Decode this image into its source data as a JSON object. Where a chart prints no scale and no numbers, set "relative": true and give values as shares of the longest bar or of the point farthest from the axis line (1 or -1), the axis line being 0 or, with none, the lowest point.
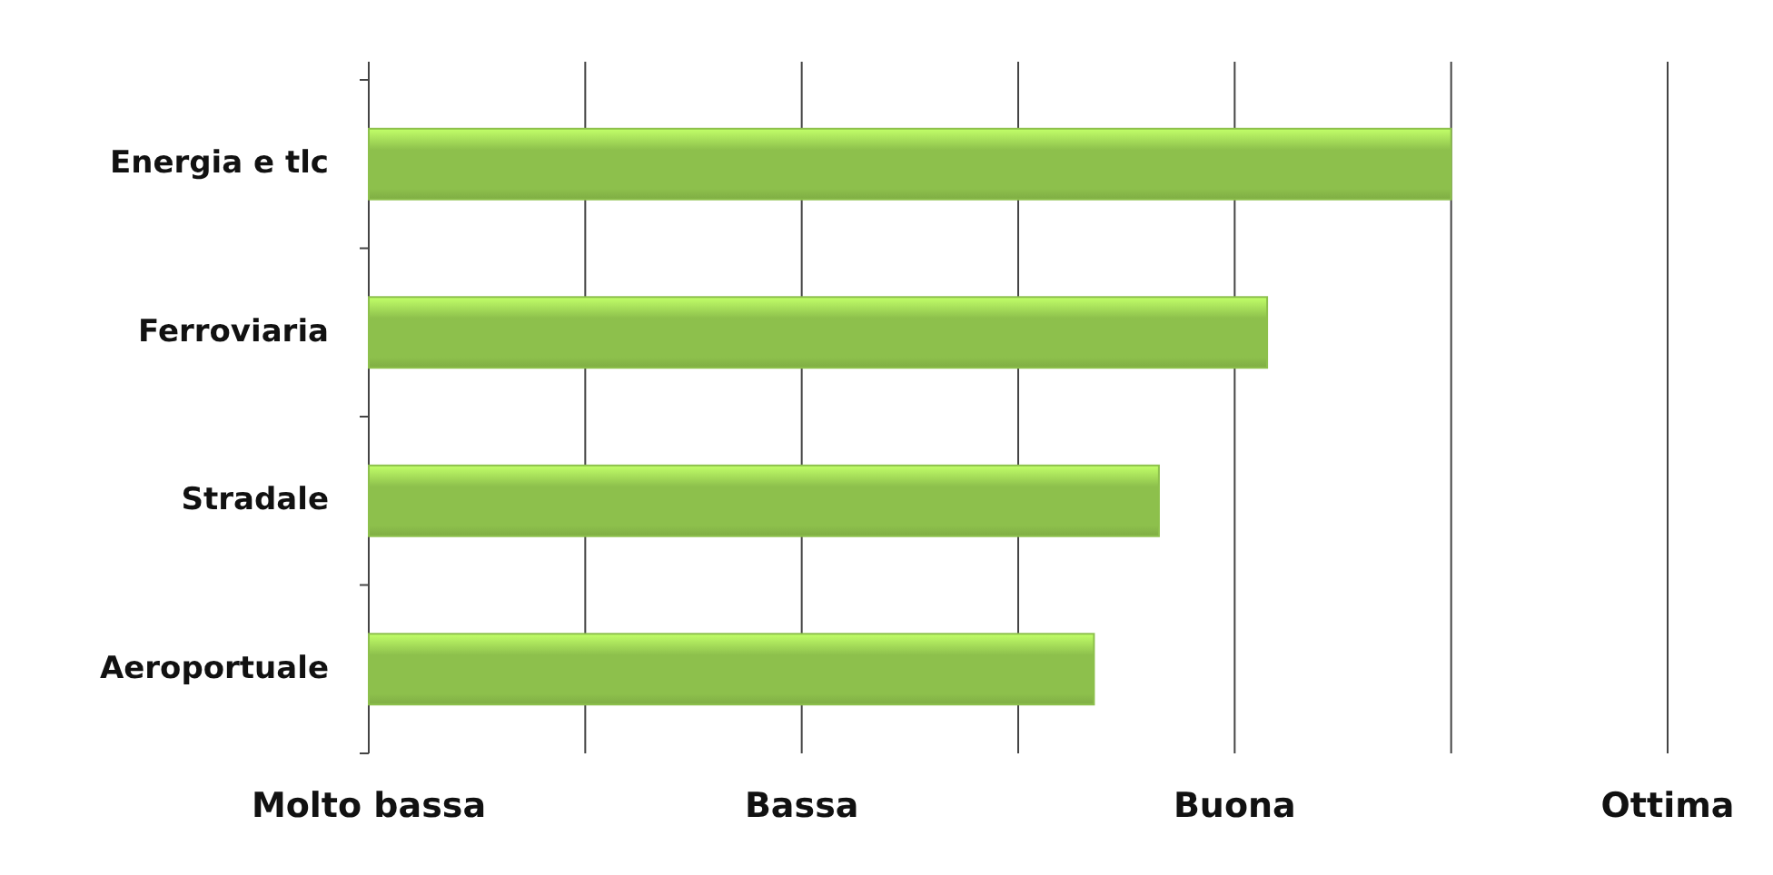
{
  "chart_data": {
    "type": "bar",
    "orientation": "horizontal",
    "relative": true,
    "categories": [
      "Energia e tlc",
      "Ferroviaria",
      "Stradale",
      "Aeroportuale"
    ],
    "values": [
      1,
      0.83,
      0.73,
      0.67
    ],
    "color": "#8dc04c",
    "annotations": [
      "Molto bassa",
      "Bassa",
      "Buona",
      "Ottima"
    ],
    "grid": "x"
  }
}
